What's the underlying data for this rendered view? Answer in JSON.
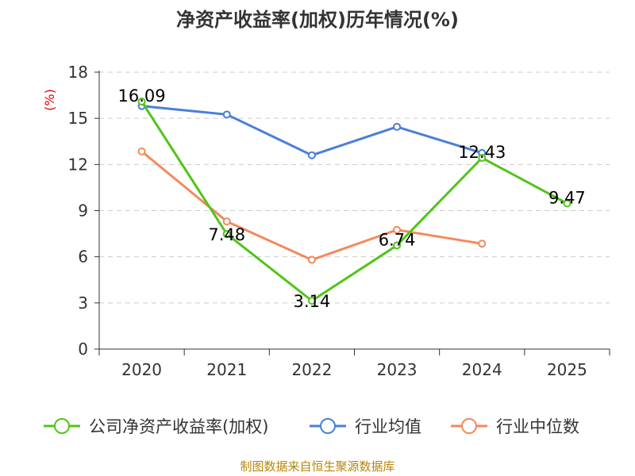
{
  "chart_data": {
    "type": "line",
    "title": "净资产收益率(加权)历年情况(%)",
    "ylabel": "(%)",
    "categories": [
      "2020",
      "2021",
      "2022",
      "2023",
      "2024",
      "2025"
    ],
    "ylim": [
      0,
      18
    ],
    "yticks": [
      0,
      3,
      6,
      9,
      12,
      15,
      18
    ],
    "grid": true,
    "legend_position": "bottom",
    "series": [
      {
        "name": "公司净资产收益率(加权)",
        "color": "#52c41a",
        "values": [
          16.09,
          7.48,
          3.14,
          6.74,
          12.43,
          9.47
        ],
        "data_labels": [
          "16.09",
          "7.48",
          "3.14",
          "6.74",
          "12.43",
          "9.47"
        ]
      },
      {
        "name": "行业均值",
        "color": "#4a7fd6",
        "values": [
          15.8,
          15.25,
          12.6,
          14.45,
          12.75,
          null
        ]
      },
      {
        "name": "行业中位数",
        "color": "#f4895c",
        "values": [
          12.85,
          8.3,
          5.8,
          7.75,
          6.85,
          null
        ]
      }
    ]
  },
  "footer": {
    "source": "制图数据来自恒生聚源数据库"
  }
}
